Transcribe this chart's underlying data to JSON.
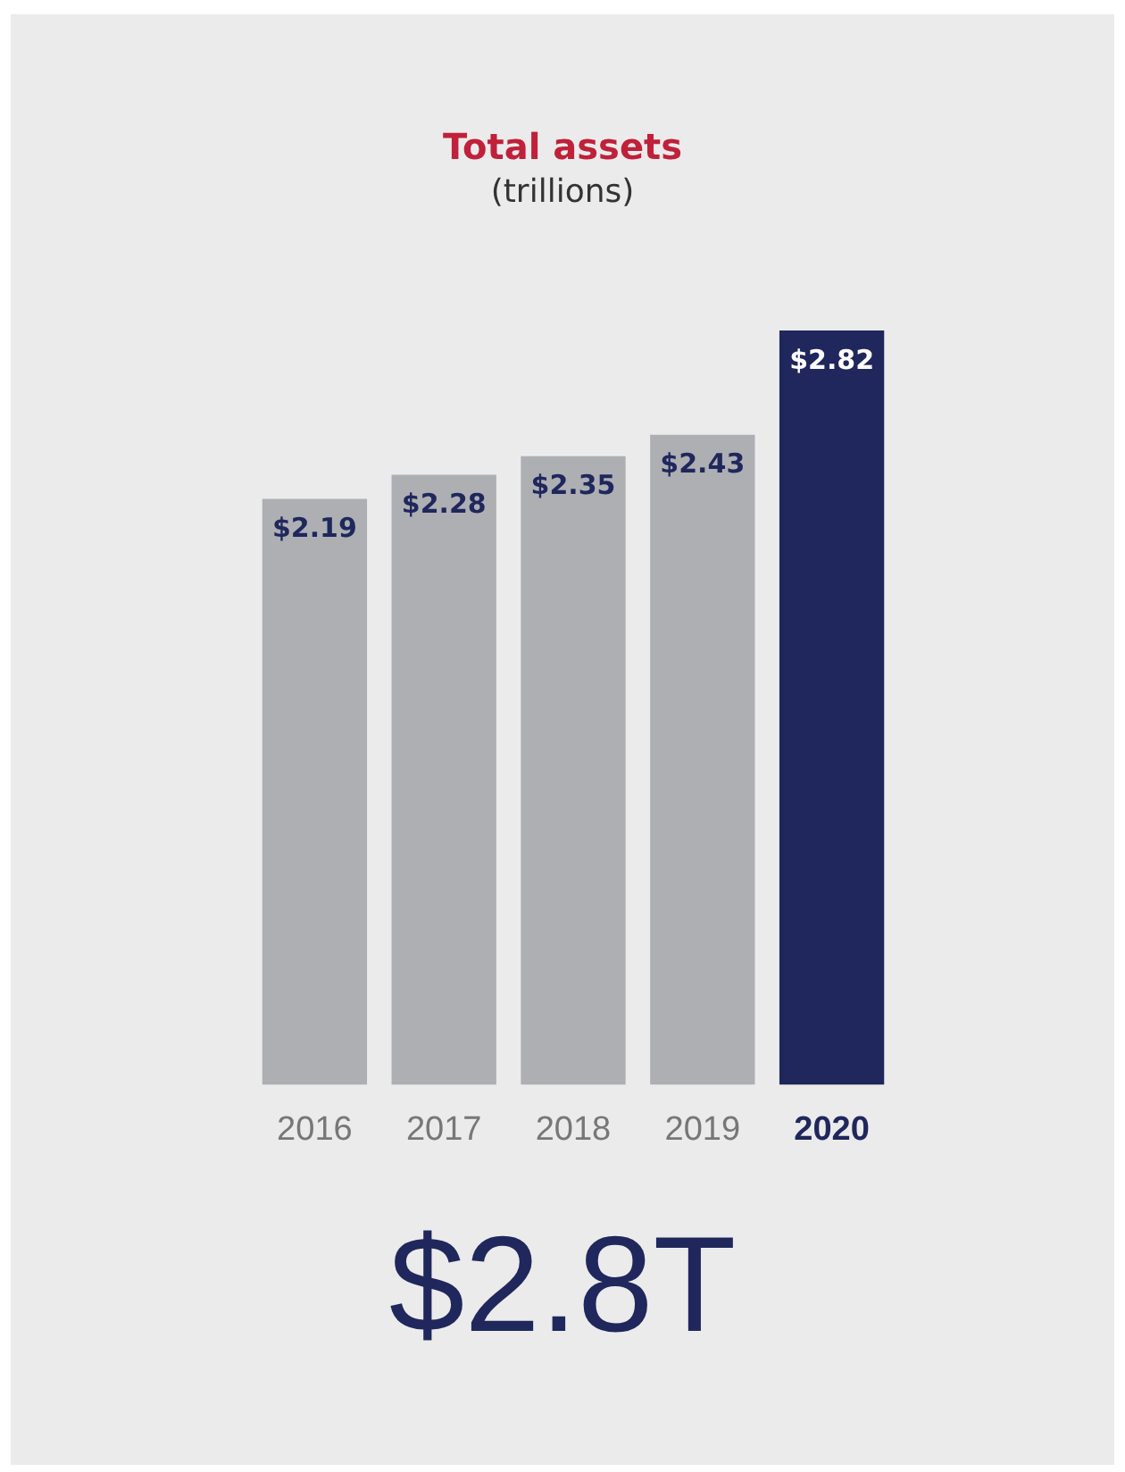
{
  "chart_data": {
    "type": "bar",
    "title": "Total assets",
    "subtitle": "(trillions)",
    "categories": [
      "2016",
      "2017",
      "2018",
      "2019",
      "2020"
    ],
    "values": [
      2.19,
      2.28,
      2.35,
      2.43,
      2.82
    ],
    "colors": [
      "#aeafb3",
      "#aeafb3",
      "#aeafb3",
      "#aeafb3",
      "#1f275c"
    ],
    "value_labels": [
      "$2.19",
      "$2.28",
      "$2.35",
      "$2.43",
      "$2.82"
    ],
    "tick_labels": "x",
    "grid": false,
    "legend": false,
    "annotations": [
      "$2.8T"
    ]
  }
}
